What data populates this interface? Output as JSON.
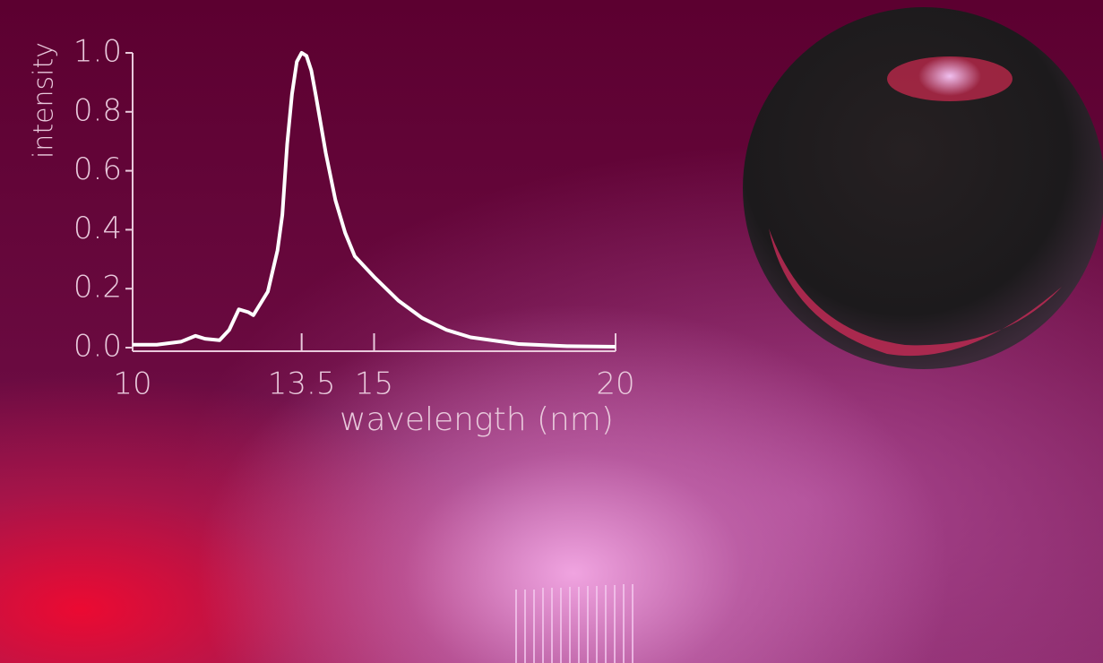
{
  "chart_data": {
    "type": "line",
    "ylabel": "intensity",
    "xlabel": "wavelength (nm)",
    "x": [
      10,
      10.5,
      11,
      11.3,
      11.5,
      11.8,
      12,
      12.2,
      12.4,
      12.5,
      12.8,
      13.0,
      13.1,
      13.2,
      13.3,
      13.4,
      13.5,
      13.6,
      13.7,
      13.8,
      14.0,
      14.2,
      14.4,
      14.6,
      15.0,
      15.5,
      16,
      16.5,
      17,
      18,
      19,
      20
    ],
    "values": [
      0.01,
      0.01,
      0.02,
      0.04,
      0.03,
      0.025,
      0.06,
      0.13,
      0.12,
      0.11,
      0.19,
      0.33,
      0.45,
      0.69,
      0.86,
      0.97,
      1.0,
      0.99,
      0.94,
      0.85,
      0.66,
      0.5,
      0.39,
      0.31,
      0.24,
      0.16,
      0.1,
      0.06,
      0.035,
      0.012,
      0.005,
      0.003
    ],
    "color": "#ffffff",
    "xlim": [
      10,
      20
    ],
    "xticks": [
      10,
      13.5,
      15,
      20
    ],
    "ylim": [
      0,
      1
    ],
    "yticks": [
      {
        "value": 0,
        "label": "0.0"
      },
      0.2,
      0.4,
      0.6,
      0.8,
      {
        "value": 1,
        "label": "1.0"
      }
    ]
  }
}
